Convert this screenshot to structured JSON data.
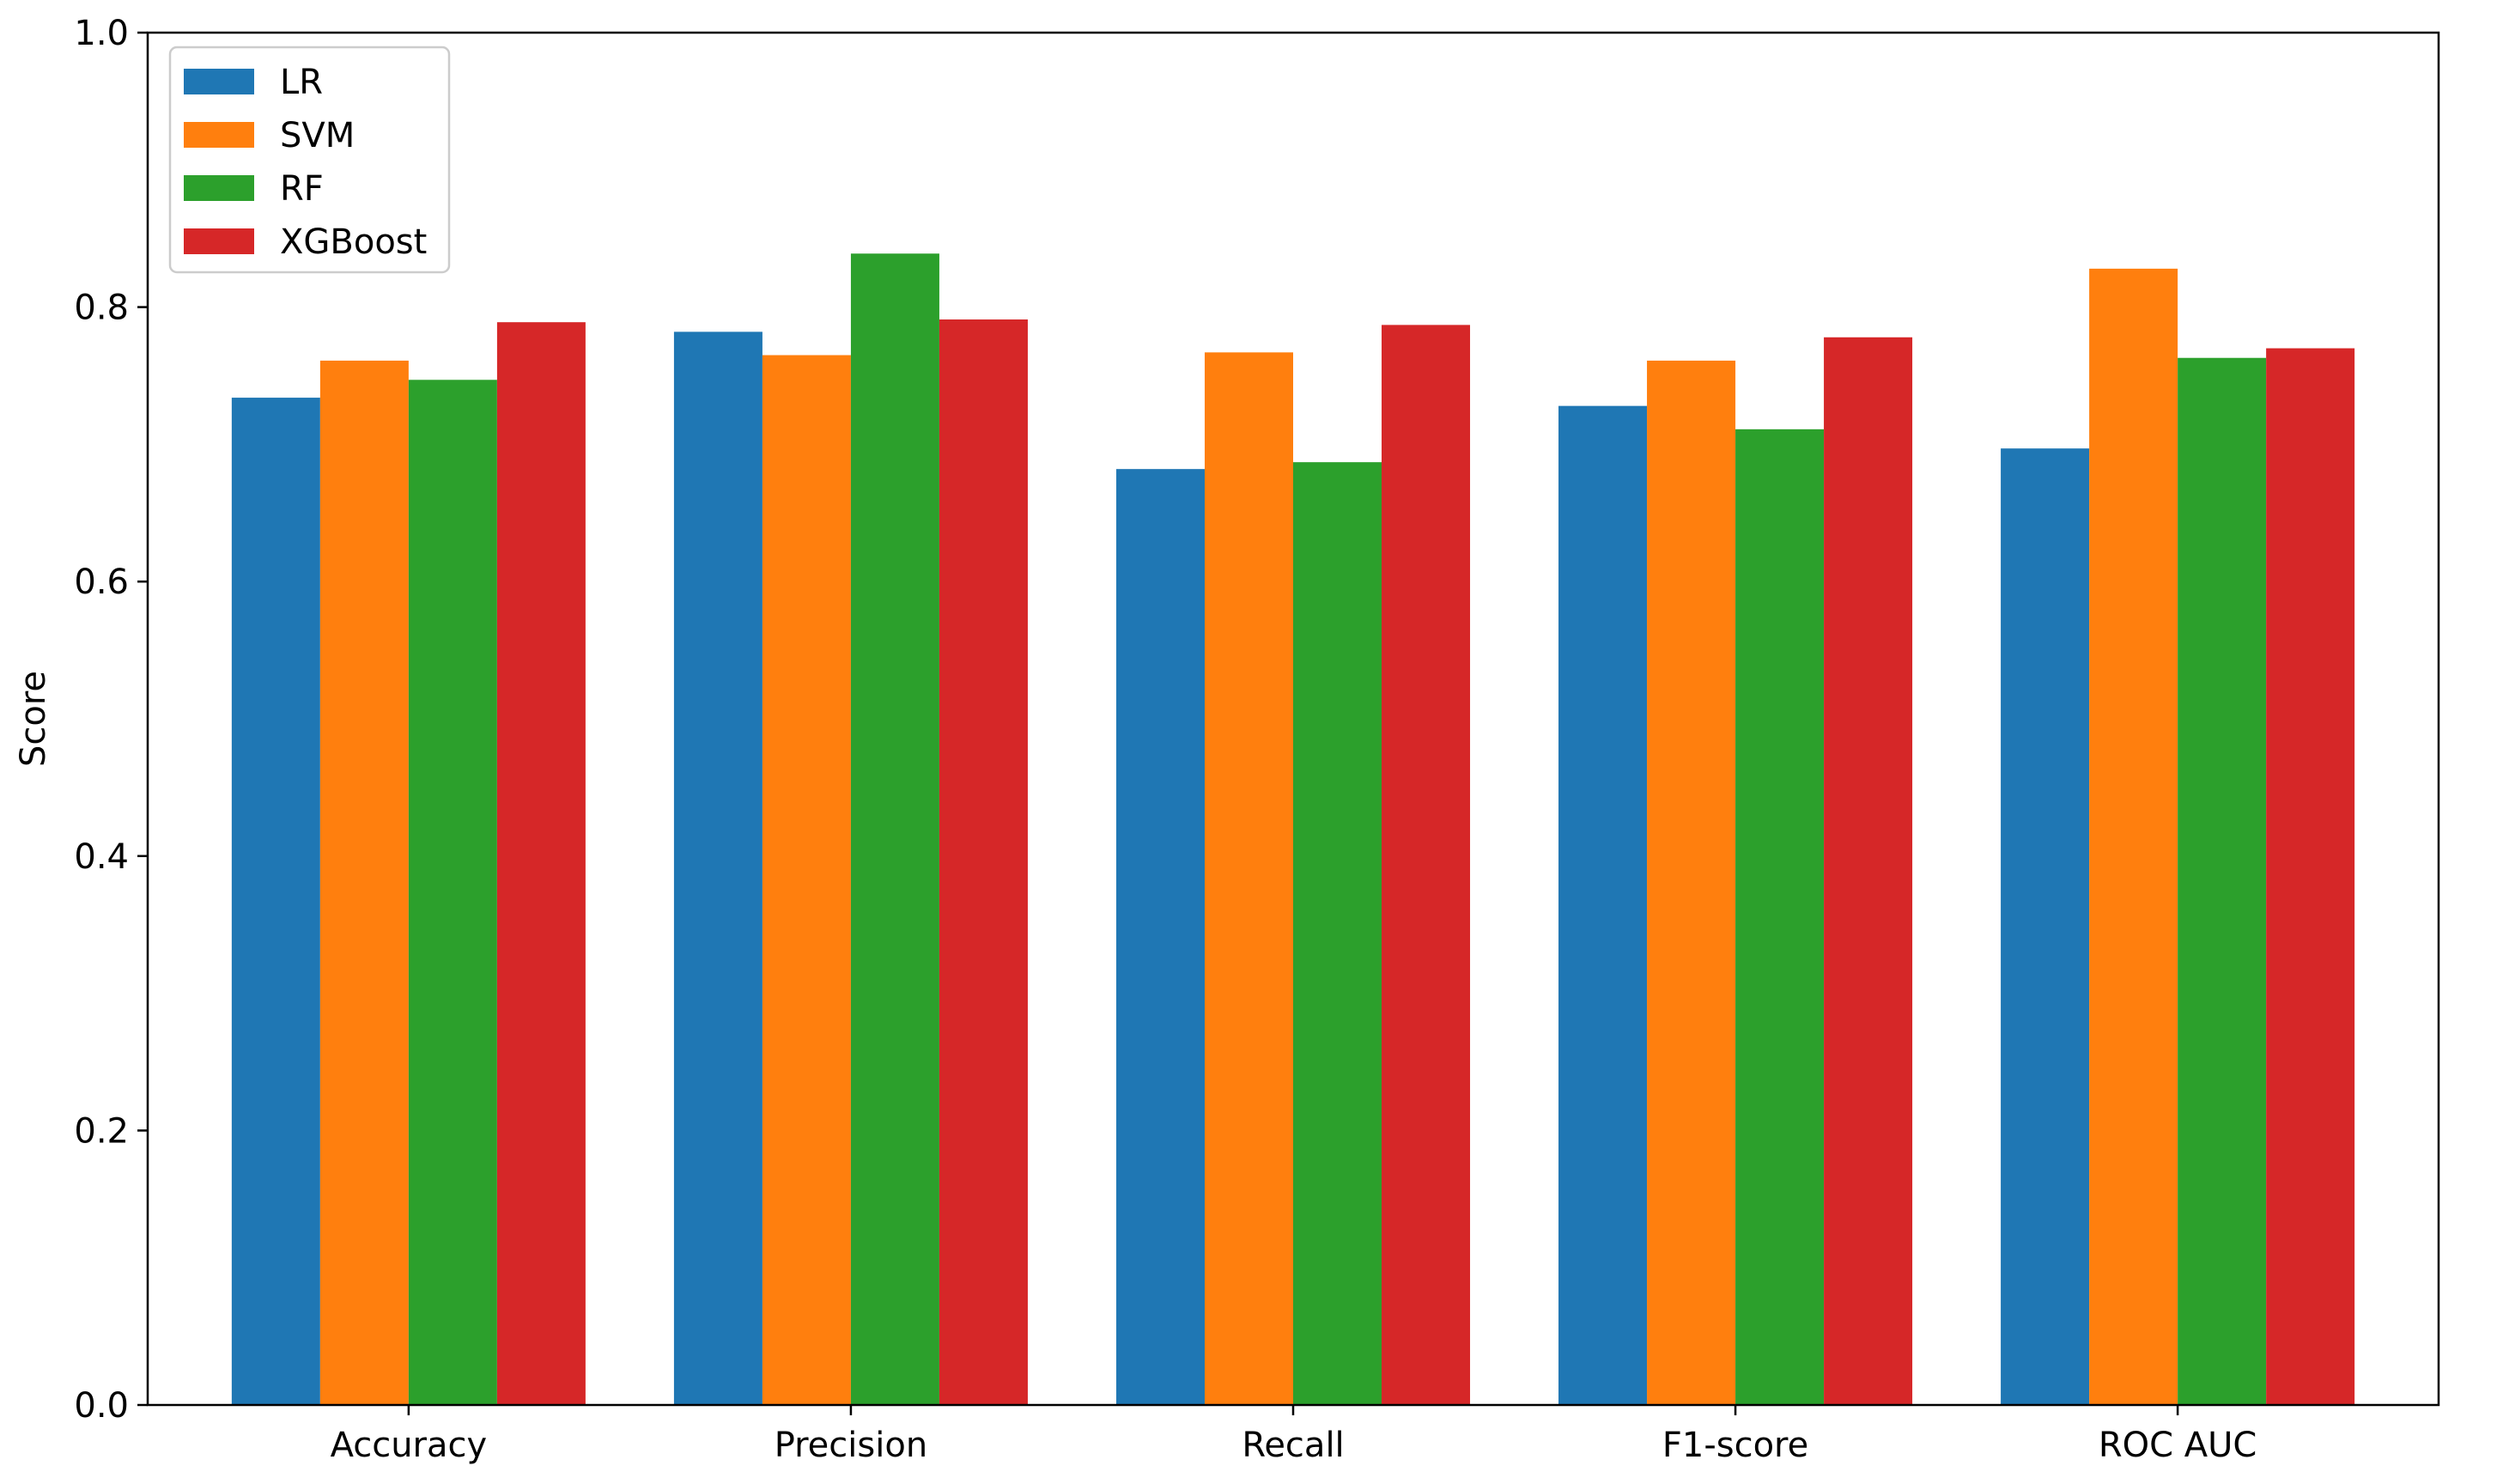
{
  "chart_data": {
    "type": "bar",
    "title": "",
    "xlabel": "",
    "ylabel": "Score",
    "ylim": [
      0,
      1.0
    ],
    "yticks": [
      "0.0",
      "0.2",
      "0.4",
      "0.6",
      "0.8",
      "1.0"
    ],
    "grid": false,
    "legend_position": "top-left",
    "categories": [
      "Accuracy",
      "Precision",
      "Recall",
      "F1-score",
      "ROC AUC"
    ],
    "series": [
      {
        "name": "LR",
        "color": "#1f77b4",
        "values": [
          0.734,
          0.782,
          0.682,
          0.728,
          0.697
        ]
      },
      {
        "name": "SVM",
        "color": "#ff7f0e",
        "values": [
          0.761,
          0.765,
          0.767,
          0.761,
          0.828
        ]
      },
      {
        "name": "RF",
        "color": "#2ca02c",
        "values": [
          0.747,
          0.839,
          0.687,
          0.711,
          0.763
        ]
      },
      {
        "name": "XGBoost",
        "color": "#d62728",
        "values": [
          0.789,
          0.791,
          0.787,
          0.778,
          0.77
        ]
      }
    ]
  }
}
